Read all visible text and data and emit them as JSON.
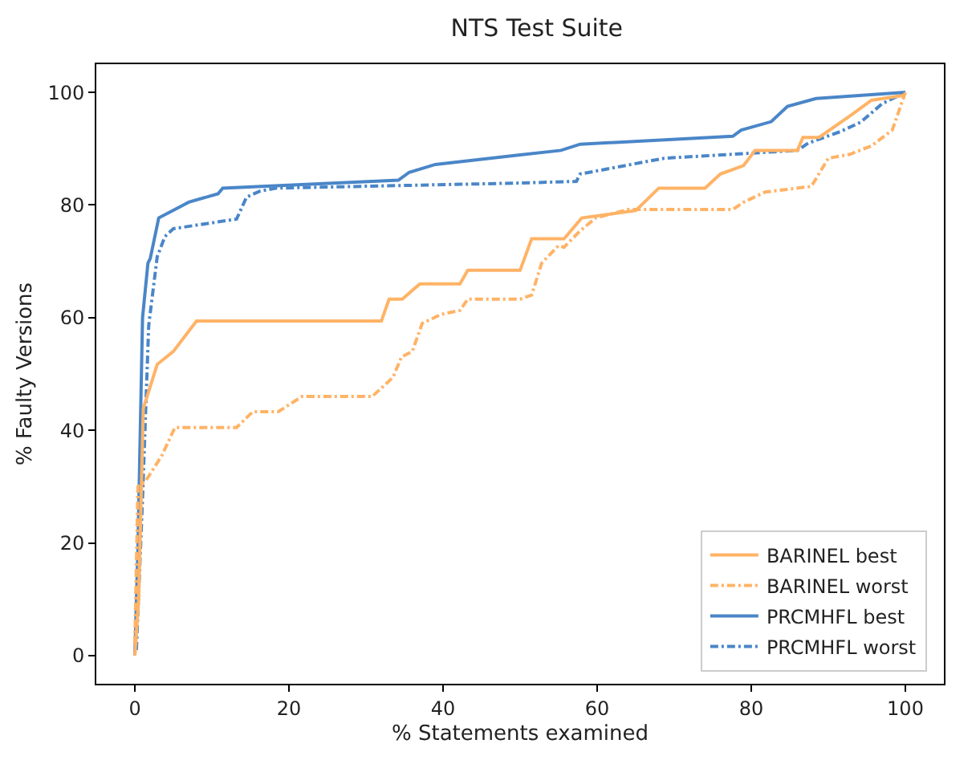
{
  "chart_data": {
    "type": "line",
    "title": "NTS Test Suite",
    "xlabel": "% Statements examined",
    "ylabel": "% Faulty Versions",
    "xlim": [
      -5,
      105
    ],
    "ylim": [
      -5,
      105
    ],
    "xticks": [
      0,
      20,
      40,
      60,
      80,
      100
    ],
    "yticks": [
      0,
      20,
      40,
      60,
      80,
      100
    ],
    "legend": "bottom right",
    "marker": "none",
    "series": [
      {
        "name": "BARINEL best",
        "color": "#ffb366",
        "line_style": "solid",
        "x": [
          0,
          0.5,
          1.1,
          2.9,
          5,
          8,
          32,
          33,
          34.7,
          37,
          42.2,
          43.2,
          50,
          51.5,
          55.7,
          58,
          65,
          68,
          74,
          76,
          79,
          80.5,
          86,
          86.7,
          88.8,
          93,
          95.6,
          100
        ],
        "values": [
          0,
          10,
          43.9,
          51.7,
          54,
          59.4,
          59.4,
          63.3,
          63.3,
          66,
          66,
          68.4,
          68.4,
          74,
          74,
          77.7,
          79,
          83,
          83,
          85.5,
          87,
          89.7,
          89.7,
          92,
          92,
          96,
          98.6,
          99.5
        ]
      },
      {
        "name": "BARINEL worst",
        "color": "#ffb366",
        "line_style": "dashdot",
        "x": [
          0,
          0.4,
          1.4,
          3.5,
          5.2,
          13.2,
          15.3,
          18.6,
          21.7,
          30.8,
          33.5,
          34.6,
          36,
          37.3,
          39.8,
          42.2,
          43.2,
          50,
          51.5,
          52.8,
          55,
          55.7,
          57.7,
          59.8,
          64,
          77.6,
          79,
          81.8,
          87.8,
          90,
          92.8,
          95.6,
          98.3,
          100
        ],
        "values": [
          2,
          30,
          31,
          35.5,
          40.5,
          40.5,
          43.3,
          43.3,
          46,
          46,
          49.4,
          53,
          54,
          59,
          60.6,
          61.3,
          63.3,
          63.3,
          64,
          69.7,
          72.8,
          72.5,
          75.3,
          77.7,
          79.2,
          79.2,
          80.5,
          82.3,
          83.3,
          88.3,
          89,
          90.5,
          93.3,
          100
        ]
      },
      {
        "name": "PRCMHFL best",
        "color": "#4a86c8",
        "line_style": "solid",
        "x": [
          0,
          0.4,
          1,
          1.7,
          2,
          3.1,
          5.2,
          7,
          10.8,
          11.4,
          34.2,
          35.6,
          39,
          50,
          55.3,
          57.8,
          77.6,
          78.7,
          82.6,
          84.7,
          88.4,
          100
        ],
        "values": [
          0,
          19,
          60,
          69.7,
          70.5,
          77.7,
          79.2,
          80.5,
          82,
          83,
          84.4,
          85.8,
          87.2,
          88.9,
          89.7,
          90.8,
          92.2,
          93.3,
          94.8,
          97.5,
          98.9,
          100
        ]
      },
      {
        "name": "PRCMHFL worst",
        "color": "#4a86c8",
        "line_style": "dashdot",
        "x": [
          0.2,
          1,
          1.8,
          2.9,
          3.9,
          5,
          13.2,
          14.5,
          16.3,
          18.4,
          50,
          57.3,
          57.8,
          68.7,
          86,
          87.4,
          91.5,
          94.2,
          97,
          100
        ],
        "values": [
          1,
          28,
          58.6,
          70.8,
          74.4,
          75.8,
          77.5,
          81.4,
          82.5,
          83,
          83.9,
          84.2,
          85.5,
          88.3,
          89.7,
          91,
          93,
          94.7,
          98,
          100
        ]
      }
    ]
  }
}
